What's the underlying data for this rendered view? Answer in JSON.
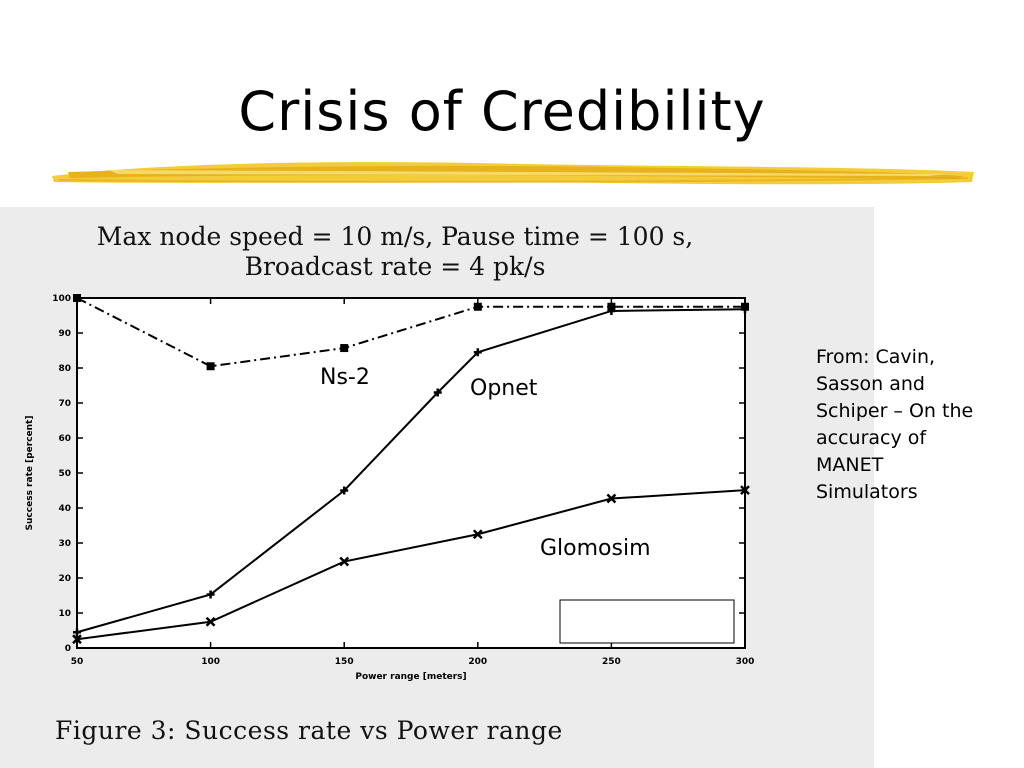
{
  "slide": {
    "title": "Crisis of Credibility",
    "source_note": "From: Cavin, Sasson and Schiper – On the accuracy of MANET Simulators",
    "accent_color": "#f2c233"
  },
  "figure": {
    "heading_line1": "Max node speed = 10 m/s, Pause time = 100 s,",
    "heading_line2": "Broadcast rate = 4 pk/s",
    "caption": "Figure 3:  Success rate vs Power range"
  },
  "chart_data": {
    "type": "line",
    "xlabel": "Power range [meters]",
    "ylabel": "Success rate [percent]",
    "xlim": [
      50,
      300
    ],
    "ylim": [
      0,
      100
    ],
    "xticks": [
      50,
      100,
      150,
      200,
      250,
      300
    ],
    "yticks": [
      0,
      10,
      20,
      30,
      40,
      50,
      60,
      70,
      80,
      90,
      100
    ],
    "grid": false,
    "series": [
      {
        "name": "Ns-2",
        "x": [
          50,
          100,
          150,
          200,
          250,
          300
        ],
        "y": [
          100,
          80.5,
          85.7,
          97.5,
          97.5,
          97.5
        ]
      },
      {
        "name": "Opnet",
        "x": [
          50,
          100,
          150,
          185,
          200,
          250,
          300
        ],
        "y": [
          4.5,
          15.3,
          45,
          73,
          84.5,
          96.3,
          96.8
        ]
      },
      {
        "name": "Glomosim",
        "x": [
          50,
          100,
          150,
          200,
          250,
          300
        ],
        "y": [
          2.5,
          7.5,
          24.7,
          32.5,
          42.7,
          45.1
        ]
      }
    ]
  }
}
